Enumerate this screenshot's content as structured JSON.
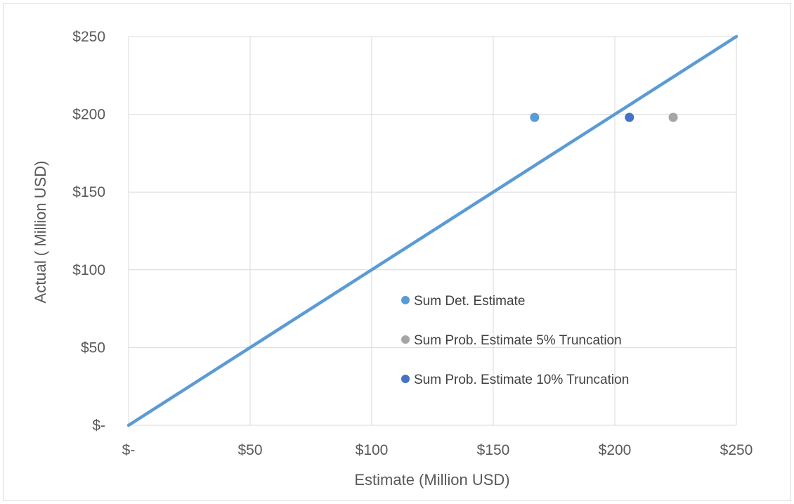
{
  "colors": {
    "grid": "#d9d9d9",
    "text": "#595959",
    "legend_text": "#404040",
    "reference_line": "#5b9bd5"
  },
  "chart_data": {
    "type": "scatter",
    "title": "",
    "xlabel": "Estimate (Million USD)",
    "ylabel": "Actual ( Million USD)",
    "xlim": [
      0,
      250
    ],
    "ylim": [
      0,
      250
    ],
    "x_ticks": [
      0,
      50,
      100,
      150,
      200,
      250
    ],
    "y_ticks": [
      0,
      50,
      100,
      150,
      200,
      250
    ],
    "x_tick_labels": [
      "$-",
      "$50",
      "$100",
      "$150",
      "$200",
      "$250"
    ],
    "y_tick_labels": [
      "$-",
      "$50",
      "$100",
      "$150",
      "$200",
      "$250"
    ],
    "grid": true,
    "legend_position": "center-right",
    "reference_line": {
      "x": [
        0,
        250
      ],
      "y": [
        0,
        250
      ]
    },
    "series": [
      {
        "name": "Sum Det. Estimate",
        "color": "#5b9bd5",
        "x": [
          167
        ],
        "y": [
          198
        ]
      },
      {
        "name": "Sum Prob. Estimate 5% Truncation",
        "color": "#a5a5a5",
        "x": [
          224
        ],
        "y": [
          198
        ]
      },
      {
        "name": "Sum Prob. Estimate 10% Truncation",
        "color": "#4472c4",
        "x": [
          206
        ],
        "y": [
          198
        ]
      }
    ]
  }
}
